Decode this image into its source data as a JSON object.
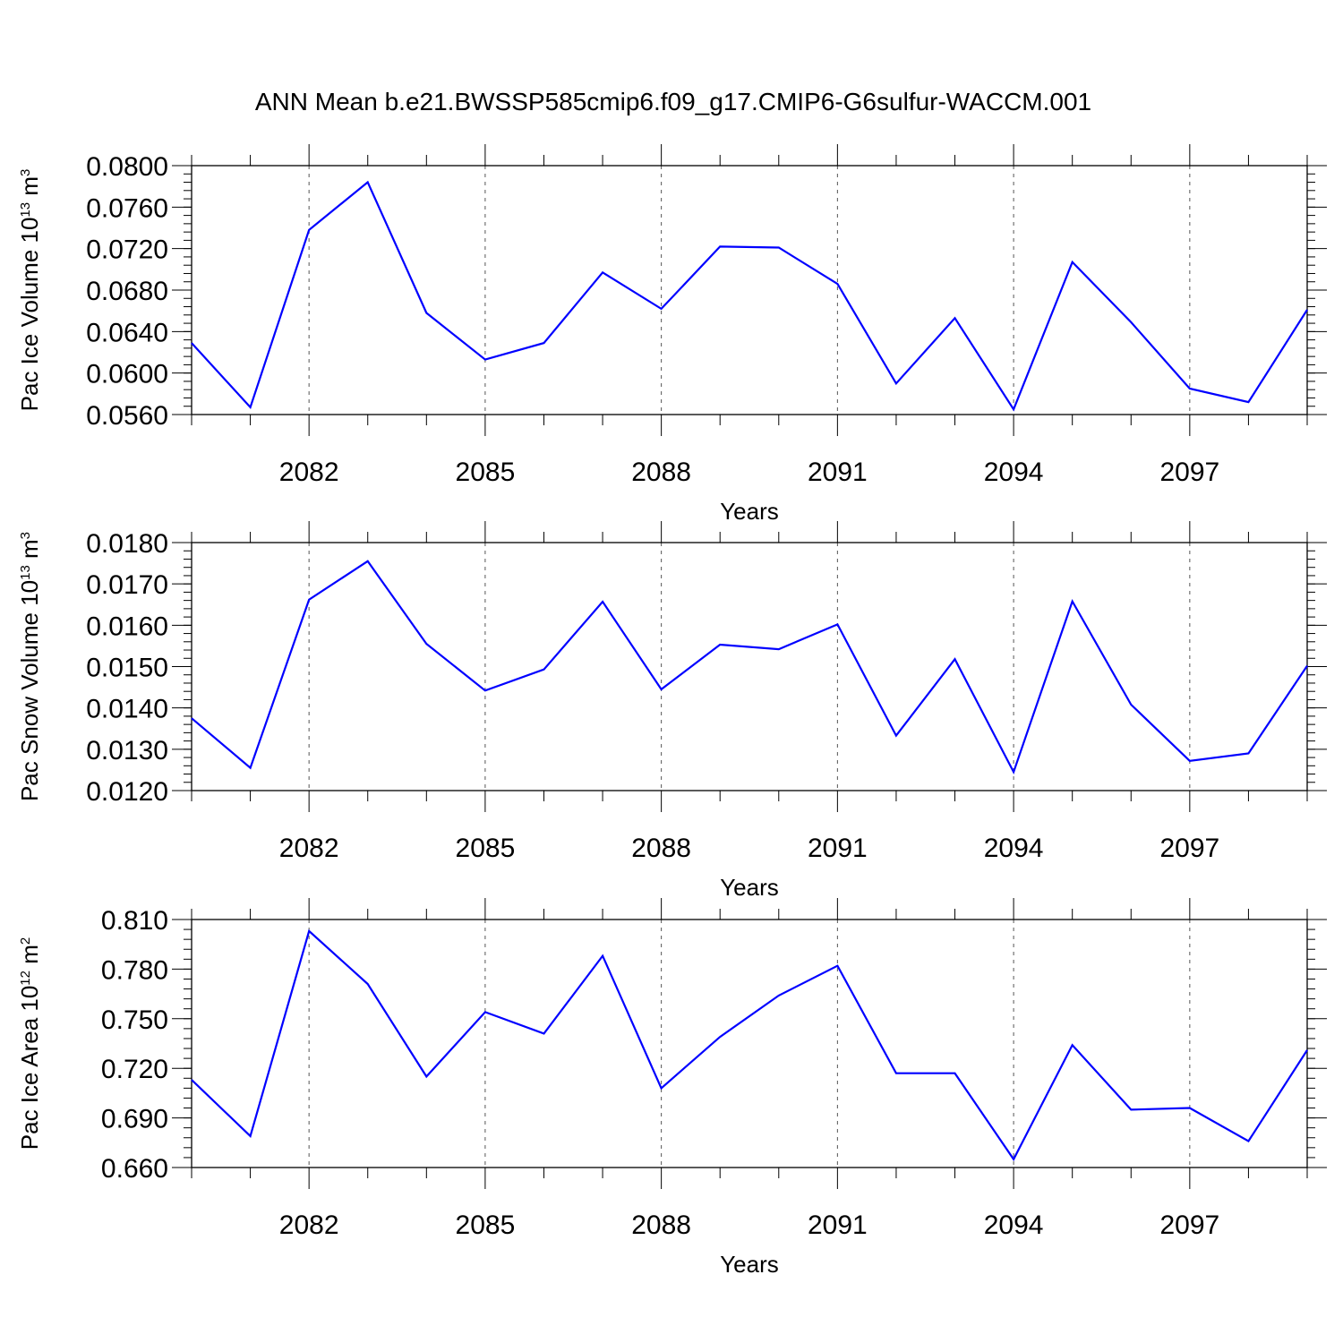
{
  "figure_title": "ANN Mean b.e21.BWSSP585cmip6.f09_g17.CMIP6-G6sulfur-WACCM.001",
  "colors": {
    "line": "#0000ff",
    "axis": "#000000",
    "grid": "#555555"
  },
  "chart_data": [
    {
      "type": "line",
      "xlabel": "Years",
      "ylabel": "Pac Ice Volume",
      "yunit_base": "10",
      "yunit_exp": "13",
      "yunit_unit": "m",
      "yunit_unit_exp": "3",
      "xlim": [
        2080,
        2099
      ],
      "ylim": [
        0.056,
        0.08
      ],
      "xticks": [
        2082,
        2085,
        2088,
        2091,
        2094,
        2097
      ],
      "xtick_labels": [
        "2082",
        "2085",
        "2088",
        "2091",
        "2094",
        "2097"
      ],
      "yticks": [
        0.056,
        0.06,
        0.064,
        0.068,
        0.072,
        0.076,
        0.08
      ],
      "ytick_labels": [
        "0.0560",
        "0.0600",
        "0.0640",
        "0.0680",
        "0.0720",
        "0.0760",
        "0.0800"
      ],
      "y_minor_step": 0.0008,
      "grid": "vertical dashed at major x ticks",
      "x": [
        2080,
        2081,
        2082,
        2083,
        2084,
        2085,
        2086,
        2087,
        2088,
        2089,
        2090,
        2091,
        2092,
        2093,
        2094,
        2095,
        2096,
        2097,
        2098,
        2099
      ],
      "series": [
        {
          "values": [
            0.0629,
            0.0567,
            0.0738,
            0.0784,
            0.0658,
            0.0613,
            0.0629,
            0.0697,
            0.0662,
            0.0722,
            0.0721,
            0.0686,
            0.059,
            0.0653,
            0.0565,
            0.0707,
            0.0649,
            0.0585,
            0.0572,
            0.0661
          ]
        }
      ]
    },
    {
      "type": "line",
      "xlabel": "Years",
      "ylabel": "Pac Snow Volume",
      "yunit_base": "10",
      "yunit_exp": "13",
      "yunit_unit": "m",
      "yunit_unit_exp": "3",
      "xlim": [
        2080,
        2099
      ],
      "ylim": [
        0.012,
        0.018
      ],
      "xticks": [
        2082,
        2085,
        2088,
        2091,
        2094,
        2097
      ],
      "xtick_labels": [
        "2082",
        "2085",
        "2088",
        "2091",
        "2094",
        "2097"
      ],
      "yticks": [
        0.012,
        0.013,
        0.014,
        0.015,
        0.016,
        0.017,
        0.018
      ],
      "ytick_labels": [
        "0.0120",
        "0.0130",
        "0.0140",
        "0.0150",
        "0.0160",
        "0.0170",
        "0.0180"
      ],
      "y_minor_step": 0.0002,
      "grid": "vertical dashed at major x ticks",
      "x": [
        2080,
        2081,
        2082,
        2083,
        2084,
        2085,
        2086,
        2087,
        2088,
        2089,
        2090,
        2091,
        2092,
        2093,
        2094,
        2095,
        2096,
        2097,
        2098,
        2099
      ],
      "series": [
        {
          "values": [
            0.01375,
            0.01255,
            0.01662,
            0.01755,
            0.01555,
            0.01442,
            0.01493,
            0.01657,
            0.01445,
            0.01553,
            0.01542,
            0.01602,
            0.01333,
            0.01518,
            0.01245,
            0.01658,
            0.01408,
            0.01272,
            0.0129,
            0.01502
          ]
        }
      ]
    },
    {
      "type": "line",
      "xlabel": "Years",
      "ylabel": "Pac Ice Area",
      "yunit_base": "10",
      "yunit_exp": "12",
      "yunit_unit": "m",
      "yunit_unit_exp": "2",
      "xlim": [
        2080,
        2099
      ],
      "ylim": [
        0.66,
        0.81
      ],
      "xticks": [
        2082,
        2085,
        2088,
        2091,
        2094,
        2097
      ],
      "xtick_labels": [
        "2082",
        "2085",
        "2088",
        "2091",
        "2094",
        "2097"
      ],
      "yticks": [
        0.66,
        0.69,
        0.72,
        0.75,
        0.78,
        0.81
      ],
      "ytick_labels": [
        "0.660",
        "0.690",
        "0.720",
        "0.750",
        "0.780",
        "0.810"
      ],
      "y_minor_step": 0.006,
      "grid": "vertical dashed at major x ticks",
      "x": [
        2080,
        2081,
        2082,
        2083,
        2084,
        2085,
        2086,
        2087,
        2088,
        2089,
        2090,
        2091,
        2092,
        2093,
        2094,
        2095,
        2096,
        2097,
        2098,
        2099
      ],
      "series": [
        {
          "values": [
            0.713,
            0.679,
            0.803,
            0.771,
            0.715,
            0.754,
            0.741,
            0.788,
            0.708,
            0.739,
            0.764,
            0.782,
            0.717,
            0.717,
            0.665,
            0.734,
            0.695,
            0.696,
            0.676,
            0.731
          ]
        }
      ]
    }
  ]
}
